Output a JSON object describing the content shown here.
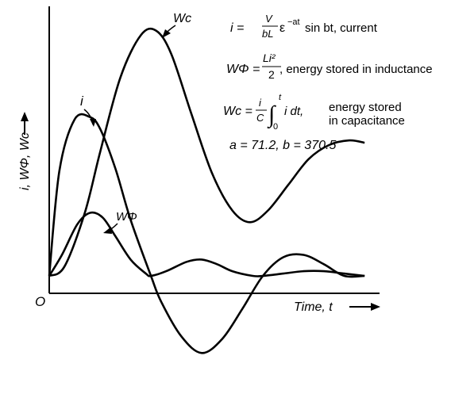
{
  "chart_data": {
    "type": "line",
    "xlabel": "Time, t",
    "ylabel": "i, WΦ, Wc",
    "origin_label": "O",
    "grid": false,
    "legend": "none",
    "annotations": {
      "current_eq_lhs": "i =",
      "current_frac_num": "V",
      "current_frac_den": "bL",
      "current_exp": "ε",
      "current_exp_sup": "−at",
      "current_rest": "sin bt, current",
      "w_phi_lhs": "WΦ =",
      "w_phi_frac_num": "Li²",
      "w_phi_frac_den": "2",
      "w_phi_desc": ", energy stored in inductance",
      "w_c_lhs": "Wc =",
      "w_c_frac_num": "i",
      "w_c_frac_den": "C",
      "w_c_integral": "∫",
      "w_c_upper": "t",
      "w_c_lower": "0",
      "w_c_integrand": "i dt,",
      "w_c_desc_1": "energy stored",
      "w_c_desc_2": "in capacitance",
      "params": "a = 71.2,  b = 370.5"
    },
    "series": [
      {
        "name": "i",
        "label": "i",
        "x": [
          0,
          0.2,
          0.5,
          0.8,
          1.0,
          1.3,
          1.6,
          2.0,
          2.2,
          2.6,
          3.0,
          3.4,
          3.8,
          4.2,
          4.6,
          5.0,
          5.4,
          5.8,
          6.2
        ],
        "y": [
          0,
          0.45,
          0.67,
          0.68,
          0.63,
          0.46,
          0.24,
          0.0,
          -0.11,
          -0.26,
          -0.33,
          -0.27,
          -0.14,
          0.0,
          0.08,
          0.09,
          0.05,
          0.0,
          0.0
        ]
      },
      {
        "name": "WΦ",
        "label": "WΦ",
        "x": [
          0,
          0.25,
          0.55,
          0.8,
          1.05,
          1.3,
          1.6,
          1.9,
          2.0,
          2.3,
          2.7,
          3.0,
          3.3,
          3.6,
          4.0,
          4.2,
          4.6,
          5.0,
          5.4,
          5.8,
          6.2
        ],
        "y": [
          0,
          0.09,
          0.22,
          0.27,
          0.25,
          0.17,
          0.07,
          0.01,
          0.0,
          0.02,
          0.06,
          0.07,
          0.05,
          0.02,
          0.0,
          0.0,
          0.01,
          0.02,
          0.02,
          0.01,
          0.0
        ]
      },
      {
        "name": "Wc",
        "label": "Wc",
        "x": [
          0,
          0.3,
          0.7,
          1.0,
          1.4,
          1.8,
          2.1,
          2.4,
          2.8,
          3.2,
          3.6,
          3.95,
          4.3,
          4.7,
          5.1,
          5.5,
          5.9,
          6.2
        ],
        "y": [
          0,
          0.04,
          0.27,
          0.53,
          0.85,
          1.03,
          1.05,
          0.95,
          0.69,
          0.44,
          0.28,
          0.23,
          0.28,
          0.39,
          0.5,
          0.56,
          0.58,
          0.57
        ]
      }
    ],
    "xlim": [
      0,
      6.4
    ],
    "ylim": [
      -0.38,
      1.12
    ]
  }
}
